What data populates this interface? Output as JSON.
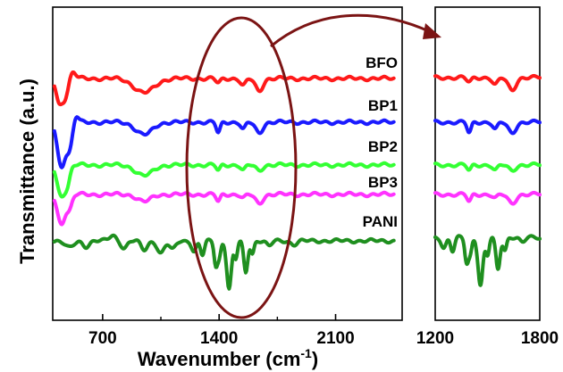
{
  "chart_data": [
    {
      "type": "line",
      "xlabel": "Wavenumber (cm",
      "xlabel_sup": "-1",
      "xlabel_tail": ")",
      "ylabel": "Transmittance (a.u.)",
      "xlim": [
        400,
        2500
      ],
      "x_ticks": [
        700,
        1400,
        2100
      ],
      "y_ticks_shown": false,
      "legend": "labels above each curve, right side",
      "annotation": "ellipse around 1200–1800 cm-1 region with arrow pointing to zoomed panel",
      "series": [
        {
          "name": "BFO",
          "color": "#ff1a1a",
          "offset": 4.2
        },
        {
          "name": "BP1",
          "color": "#1a1aff",
          "offset": 3.4
        },
        {
          "name": "BP2",
          "color": "#33ff33",
          "offset": 2.55
        },
        {
          "name": "BP3",
          "color": "#ff33ff",
          "offset": 1.95
        },
        {
          "name": "PANI",
          "color": "#1f8f1f",
          "offset": 1.1
        }
      ]
    },
    {
      "type": "line",
      "xlim": [
        1200,
        1800
      ],
      "x_ticks": [
        1200,
        1800
      ],
      "description_of_panel": "zoom of 1200–1800 cm-1",
      "series": [
        {
          "name": "BFO",
          "color": "#ff1a1a"
        },
        {
          "name": "BP1",
          "color": "#1a1aff"
        },
        {
          "name": "BP2",
          "color": "#33ff33"
        },
        {
          "name": "BP3",
          "color": "#ff33ff"
        },
        {
          "name": "PANI",
          "color": "#1f8f1f"
        }
      ]
    }
  ],
  "annotation_colors": {
    "ellipse": "#7b1414",
    "arrow": "#7b1414"
  }
}
